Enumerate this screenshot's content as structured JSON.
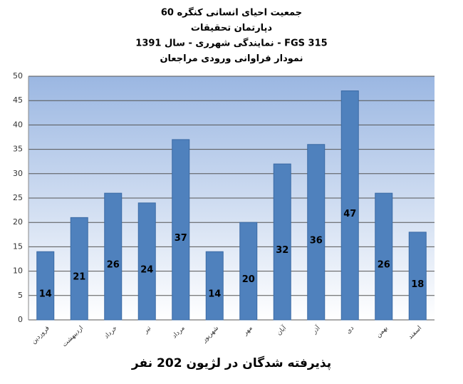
{
  "chart_data": {
    "type": "bar",
    "title": [
      "جمعیت احیای انسانی کنگره 60",
      "دپارتمان تحقیقات",
      "نمایندگی شهرری - سال 1391 - FGS 315",
      "نمودار فراوانی ورودی مراجعان"
    ],
    "x_label": "پذیرفته شدگان در لژیون 202 نفر",
    "categories": [
      "فروردین",
      "اردیبهشت",
      "خرداد",
      "تیر",
      "مرداد",
      "شهریور",
      "مهر",
      "آبان",
      "آذر",
      "دی",
      "بهمن",
      "اسفند"
    ],
    "values": [
      14,
      21,
      26,
      24,
      37,
      14,
      20,
      32,
      36,
      47,
      26,
      18
    ],
    "color": "#4f81bd",
    "ylim": [
      0,
      50
    ],
    "yticks": [
      0,
      5,
      10,
      15,
      20,
      25,
      30,
      35,
      40,
      45,
      50
    ],
    "grid": true
  }
}
